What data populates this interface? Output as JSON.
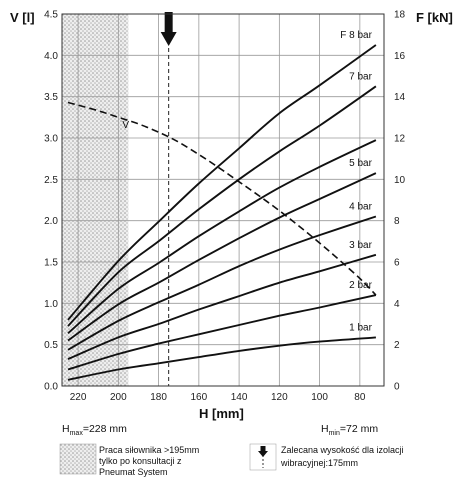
{
  "chart_data": {
    "type": "line",
    "x_reversed": true,
    "xlabel": "H [mm]",
    "ylabel": "V [l]",
    "ylabel_right": "F [kN]",
    "xlim": [
      228,
      68
    ],
    "ylim": [
      0,
      4.5
    ],
    "ylim_right": [
      0,
      18
    ],
    "x_ticks": [
      220,
      200,
      180,
      160,
      140,
      120,
      100,
      80
    ],
    "y_ticks": [
      0.0,
      0.5,
      1.0,
      1.5,
      2.0,
      2.5,
      3.0,
      3.5,
      4.0,
      4.5
    ],
    "y_ticks_right": [
      0,
      2,
      4,
      6,
      8,
      10,
      12,
      14,
      16,
      18
    ],
    "grid": true,
    "h_max_label": "H",
    "h_max_sub": "max",
    "h_max_value": "=228 mm",
    "h_min_label": "H",
    "h_min_sub": "min",
    "h_min_value": "=72 mm",
    "hatched_region_x": [
      228,
      195
    ],
    "recommended_height_x": 175,
    "force_series": [
      {
        "name": "1 bar",
        "x": [
          225,
          200,
          180,
          160,
          140,
          120,
          100,
          72
        ],
        "values": [
          0.3,
          0.8,
          1.1,
          1.4,
          1.7,
          1.95,
          2.15,
          2.35
        ]
      },
      {
        "name": "2 bar",
        "x": [
          225,
          200,
          180,
          160,
          140,
          120,
          100,
          72
        ],
        "values": [
          0.8,
          1.55,
          2.05,
          2.5,
          2.95,
          3.4,
          3.8,
          4.4
        ]
      },
      {
        "name": "3 bar",
        "x": [
          225,
          200,
          180,
          160,
          140,
          120,
          100,
          72
        ],
        "values": [
          1.3,
          2.35,
          3.0,
          3.7,
          4.35,
          5.0,
          5.55,
          6.35
        ]
      },
      {
        "name": "4 bar",
        "x": [
          225,
          200,
          180,
          160,
          140,
          120,
          100,
          72
        ],
        "values": [
          1.75,
          3.15,
          4.05,
          4.9,
          5.8,
          6.6,
          7.3,
          8.2
        ]
      },
      {
        "name": "5 bar",
        "x": [
          225,
          200,
          180,
          160,
          140,
          120,
          100,
          72
        ],
        "values": [
          2.2,
          3.95,
          5.0,
          6.1,
          7.15,
          8.15,
          9.05,
          10.3
        ]
      },
      {
        "name": "",
        "x": [
          225,
          200,
          180,
          160,
          140,
          120,
          100,
          72
        ],
        "values": [
          2.55,
          4.7,
          5.95,
          7.25,
          8.45,
          9.6,
          10.6,
          11.9
        ]
      },
      {
        "name": "7 bar",
        "x": [
          225,
          200,
          180,
          160,
          140,
          120,
          100,
          72
        ],
        "values": [
          2.9,
          5.5,
          7.0,
          8.55,
          10.0,
          11.35,
          12.6,
          14.5
        ]
      },
      {
        "name": "F 8 bar",
        "x": [
          225,
          200,
          180,
          160,
          140,
          120,
          100,
          72
        ],
        "values": [
          3.2,
          6.05,
          7.95,
          9.8,
          11.5,
          13.2,
          14.55,
          16.5
        ]
      }
    ],
    "volume_series": {
      "name": "V",
      "x": [
        225,
        210,
        200,
        190,
        180,
        170,
        160,
        150,
        140,
        130,
        120,
        110,
        100,
        90,
        80,
        72
      ],
      "values": [
        3.43,
        3.33,
        3.25,
        3.17,
        3.07,
        2.95,
        2.8,
        2.64,
        2.47,
        2.3,
        2.12,
        1.93,
        1.73,
        1.52,
        1.3,
        1.1
      ]
    }
  },
  "legend": {
    "hatched_text": [
      "Praca siłownika >195mm",
      "tylko po konsultacji z",
      "Pneumat System"
    ],
    "arrow_text": [
      "Zalecana wysokość dla izolacji",
      "wibracyjnej:175mm"
    ]
  }
}
